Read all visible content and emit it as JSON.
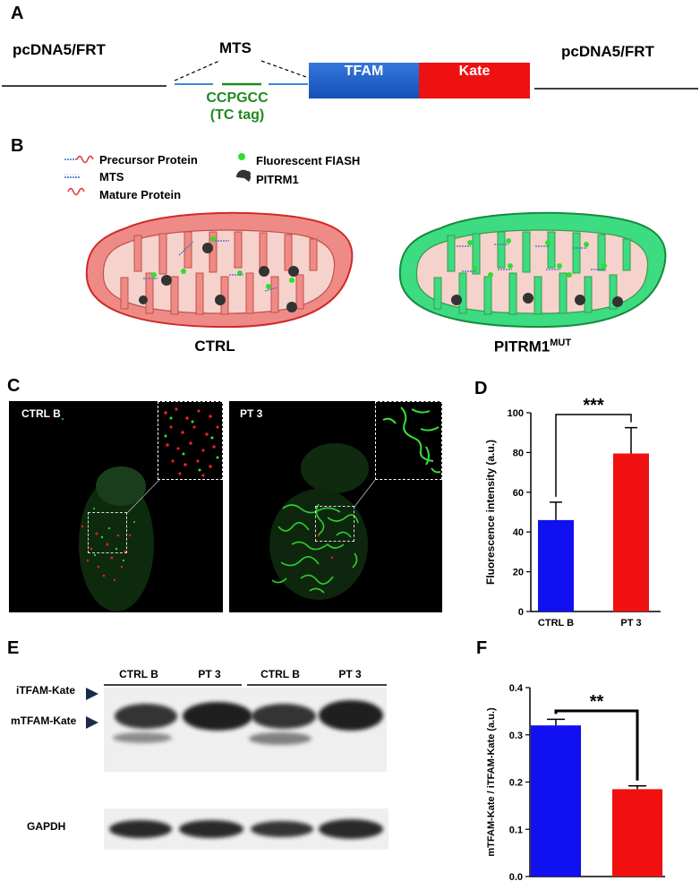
{
  "panelA": {
    "label": "A",
    "vector_left": "pcDNA5/FRT",
    "vector_right": "pcDNA5/FRT",
    "mts": "MTS",
    "tc_seq": "CCPGCC",
    "tc_tag": "(TC tag)",
    "tfam": "TFAM",
    "kate": "Kate",
    "colors": {
      "tfam": "#1d5fc9",
      "kate": "#ee1111",
      "tc": "#1f8a1f",
      "mts_line": "#3a8ad6"
    }
  },
  "panelB": {
    "label": "B",
    "legend": {
      "precursor": "Precursor Protein",
      "mts": "MTS",
      "mature": "Mature Protein",
      "flash": "Fluorescent FlASH",
      "pitrm1": "PITRM1"
    },
    "ctrl_label": "CTRL",
    "mut_label": "PITRM1",
    "mut_sup": "MUT",
    "colors": {
      "ctrl_outer": "#ef8b87",
      "ctrl_border": "#d02a2a",
      "mut_outer": "#3ddb82",
      "mut_border": "#148c3c",
      "inner": "#f6d2cc"
    }
  },
  "panelC": {
    "label": "C",
    "left_label": "CTRL B",
    "right_label": "PT 3"
  },
  "panelD": {
    "label": "D",
    "chart_data": {
      "type": "bar",
      "categories": [
        "CTRL B",
        "PT 3"
      ],
      "values": [
        46,
        79.5
      ],
      "errors": [
        9,
        13
      ],
      "colors": [
        "#1010f0",
        "#f01010"
      ],
      "ylabel": "Fluorescence intensity (a.u.)",
      "ylim": [
        0,
        100
      ],
      "yticks": [
        "0",
        "20",
        "40",
        "60",
        "80",
        "100"
      ],
      "significance": "***"
    }
  },
  "panelE": {
    "label": "E",
    "lanes": [
      "CTRL B",
      "PT 3",
      "CTRL B",
      "PT 3"
    ],
    "itfam": "iTFAM-Kate",
    "mtfam": "mTFAM-Kate",
    "gapdh": "GAPDH"
  },
  "panelF": {
    "label": "F",
    "chart_data": {
      "type": "bar",
      "categories": [
        "CTRL B",
        "PT 3"
      ],
      "values": [
        0.32,
        0.185
      ],
      "errors": [
        0.013,
        0.007
      ],
      "colors": [
        "#1010f0",
        "#f01010"
      ],
      "ylabel": "mTFAM-Kate / iTFAM-Kate (a.u.)",
      "ylim": [
        0,
        0.4
      ],
      "yticks": [
        "0.0",
        "0.1",
        "0.2",
        "0.3",
        "0.4"
      ],
      "significance": "**"
    }
  }
}
